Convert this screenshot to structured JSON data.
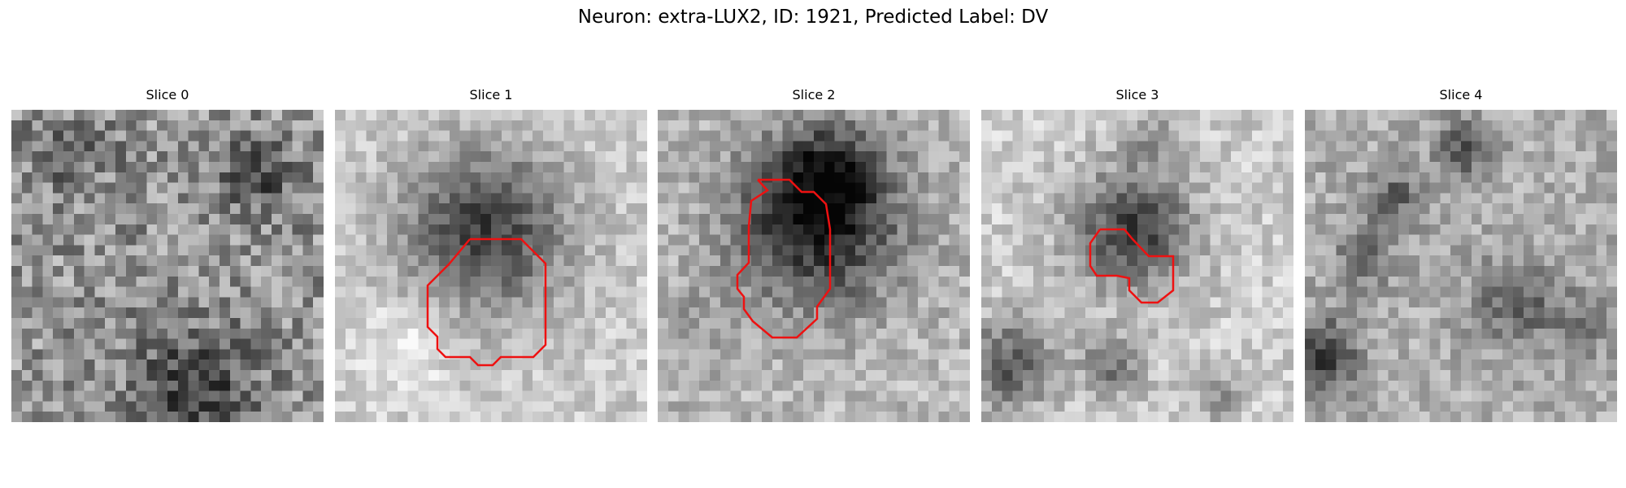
{
  "figure": {
    "title": "Neuron: extra-LUX2, ID: 1921, Predicted Label: DV",
    "contour_color": "#ee1111"
  },
  "panels": [
    {
      "title": "Slice 0",
      "has_contour": false
    },
    {
      "title": "Slice 1",
      "has_contour": true
    },
    {
      "title": "Slice 2",
      "has_contour": true
    },
    {
      "title": "Slice 3",
      "has_contour": true
    },
    {
      "title": "Slice 4",
      "has_contour": false
    }
  ]
}
